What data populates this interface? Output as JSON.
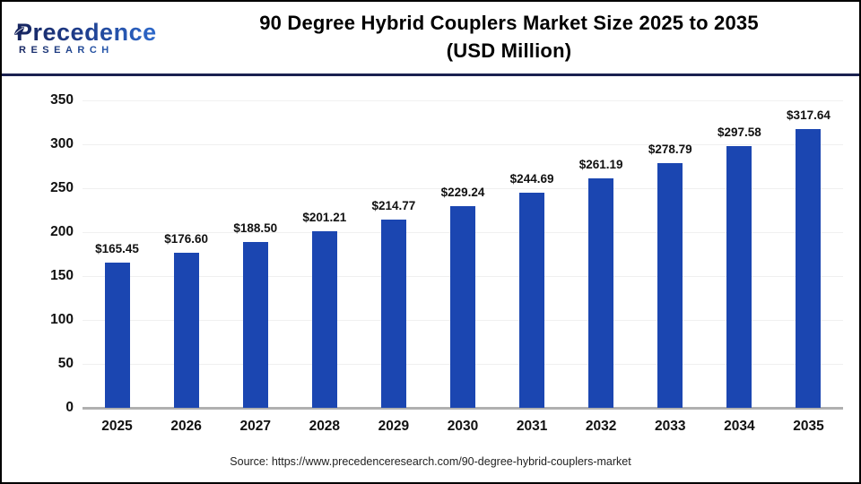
{
  "header": {
    "logo": {
      "line1": "Precedence",
      "line2": "RESEARCH"
    },
    "title_line1": "90 Degree Hybrid Couplers Market Size 2025 to 2035",
    "title_line2": "(USD Million)"
  },
  "chart_data": {
    "type": "bar",
    "title": "90 Degree Hybrid Couplers Market Size 2025 to 2035 (USD Million)",
    "xlabel": "",
    "ylabel": "",
    "categories": [
      "2025",
      "2026",
      "2027",
      "2028",
      "2029",
      "2030",
      "2031",
      "2032",
      "2033",
      "2034",
      "2035"
    ],
    "values": [
      165.45,
      176.6,
      188.5,
      201.21,
      214.77,
      229.24,
      244.69,
      261.19,
      278.79,
      297.58,
      317.64
    ],
    "value_labels": [
      "$165.45",
      "$176.60",
      "$188.50",
      "$201.21",
      "$214.77",
      "$229.24",
      "$244.69",
      "$261.19",
      "$278.79",
      "$297.58",
      "$317.64"
    ],
    "ylim": [
      0,
      350
    ],
    "ytick_step": 50,
    "yticks": [
      0,
      50,
      100,
      150,
      200,
      250,
      300,
      350
    ],
    "grid": true,
    "legend": "none",
    "bar_color": "#1b46b1"
  },
  "footer": {
    "source": "Source: https://www.precedenceresearch.com/90-degree-hybrid-couplers-market"
  },
  "colors": {
    "bar": "#1b46b1",
    "divider_navy": "#1a2150",
    "baseline_gray": "#b0b0b0",
    "gridline": "#f0f0f0",
    "logo_navy": "#17255f",
    "logo_blue": "#2f6fd4",
    "title_text": "#000000"
  }
}
